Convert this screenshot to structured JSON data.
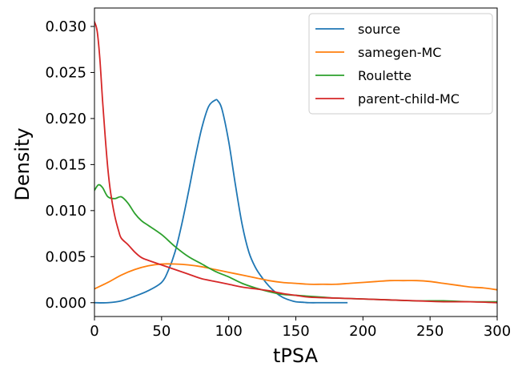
{
  "chart_data": {
    "type": "line",
    "xlabel": "tPSA",
    "ylabel": "Density",
    "xlim": [
      0,
      300
    ],
    "ylim": [
      -0.0015,
      0.032
    ],
    "x_ticks": [
      0,
      50,
      100,
      150,
      200,
      250,
      300
    ],
    "x_tick_labels": [
      "0",
      "50",
      "100",
      "150",
      "200",
      "250",
      "300"
    ],
    "y_ticks": [
      0.0,
      0.005,
      0.01,
      0.015,
      0.02,
      0.025,
      0.03
    ],
    "y_tick_labels": [
      "0.000",
      "0.005",
      "0.010",
      "0.015",
      "0.020",
      "0.025",
      "0.030"
    ],
    "grid": false,
    "legend_position": "top-right",
    "series": [
      {
        "name": "source",
        "color": "#1f77b4",
        "x": [
          0,
          10,
          20,
          30,
          40,
          50,
          55,
          60,
          65,
          70,
          75,
          80,
          85,
          90,
          92,
          95,
          100,
          105,
          110,
          115,
          120,
          125,
          130,
          135,
          140,
          145,
          150,
          155,
          160,
          170,
          188
        ],
        "y": [
          0.0,
          0.0,
          0.0002,
          0.0007,
          0.0013,
          0.0022,
          0.0035,
          0.0055,
          0.0085,
          0.012,
          0.0157,
          0.019,
          0.0213,
          0.022,
          0.0219,
          0.021,
          0.0175,
          0.0128,
          0.0085,
          0.0055,
          0.0038,
          0.0027,
          0.0018,
          0.0011,
          0.0006,
          0.0003,
          0.0001,
          5e-05,
          0.0,
          0.0,
          0.0
        ]
      },
      {
        "name": "samegen-MC",
        "color": "#ff7f0e",
        "x": [
          0,
          10,
          20,
          30,
          40,
          50,
          60,
          70,
          80,
          90,
          100,
          110,
          120,
          130,
          140,
          150,
          160,
          170,
          180,
          190,
          200,
          210,
          220,
          230,
          240,
          250,
          260,
          270,
          280,
          290,
          300
        ],
        "y": [
          0.0015,
          0.0022,
          0.003,
          0.0036,
          0.004,
          0.0042,
          0.0042,
          0.0041,
          0.0039,
          0.0036,
          0.0033,
          0.003,
          0.0027,
          0.0024,
          0.0022,
          0.0021,
          0.002,
          0.002,
          0.002,
          0.0021,
          0.0022,
          0.0023,
          0.0024,
          0.0024,
          0.0024,
          0.0023,
          0.0021,
          0.0019,
          0.0017,
          0.0016,
          0.0014
        ]
      },
      {
        "name": "Roulette",
        "color": "#2ca02c",
        "x": [
          0,
          3,
          6,
          10,
          15,
          20,
          25,
          30,
          35,
          40,
          50,
          60,
          70,
          80,
          90,
          100,
          110,
          120,
          130,
          140,
          150,
          160,
          170,
          180,
          200,
          220,
          240,
          260,
          280,
          300
        ],
        "y": [
          0.0122,
          0.0128,
          0.0125,
          0.0115,
          0.0113,
          0.0115,
          0.0108,
          0.0097,
          0.0089,
          0.0084,
          0.0074,
          0.0061,
          0.005,
          0.0042,
          0.0034,
          0.0028,
          0.0021,
          0.0016,
          0.0012,
          0.0009,
          0.0008,
          0.0007,
          0.0006,
          0.0005,
          0.0004,
          0.0003,
          0.0002,
          0.0002,
          0.0001,
          0.0001
        ]
      },
      {
        "name": "parent-child-MC",
        "color": "#d62728",
        "x": [
          0,
          2,
          4,
          6,
          8,
          10,
          12,
          15,
          18,
          20,
          25,
          30,
          35,
          40,
          50,
          60,
          70,
          80,
          90,
          100,
          110,
          120,
          130,
          140,
          150,
          160,
          180,
          200,
          220,
          240,
          260,
          280,
          300
        ],
        "y": [
          0.0305,
          0.0295,
          0.0265,
          0.022,
          0.018,
          0.0145,
          0.012,
          0.0095,
          0.0078,
          0.007,
          0.0063,
          0.0055,
          0.0049,
          0.0046,
          0.0041,
          0.0036,
          0.0031,
          0.0026,
          0.0023,
          0.002,
          0.0017,
          0.0015,
          0.0013,
          0.001,
          0.0008,
          0.0006,
          0.0005,
          0.0004,
          0.0003,
          0.0002,
          0.0001,
          0.0001,
          0.0
        ]
      }
    ]
  }
}
